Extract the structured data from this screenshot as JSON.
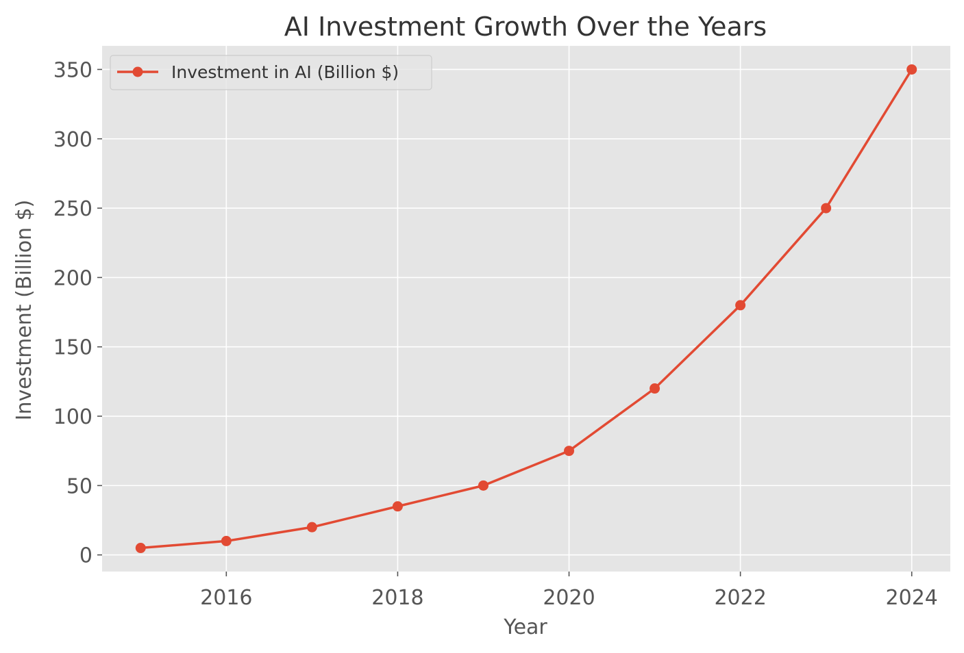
{
  "chart_data": {
    "type": "line",
    "title": "AI Investment Growth Over the Years",
    "xlabel": "Year",
    "ylabel": "Investment (Billion $)",
    "x": [
      2015,
      2016,
      2017,
      2018,
      2019,
      2020,
      2021,
      2022,
      2023,
      2024
    ],
    "series": [
      {
        "name": "Investment in AI (Billion $)",
        "values": [
          5,
          10,
          20,
          35,
          50,
          75,
          120,
          180,
          250,
          350
        ],
        "color": "#E24A33",
        "marker": "circle"
      }
    ],
    "xlim": [
      2014.55,
      2024.45
    ],
    "ylim": [
      -12,
      367
    ],
    "xticks": [
      2016,
      2018,
      2020,
      2022,
      2024
    ],
    "yticks": [
      0,
      50,
      100,
      150,
      200,
      250,
      300,
      350
    ],
    "grid": true,
    "legend_position": "upper left",
    "style": {
      "plot_background": "#E5E5E5",
      "grid_color": "#FFFFFF",
      "tick_color": "#555555"
    }
  }
}
